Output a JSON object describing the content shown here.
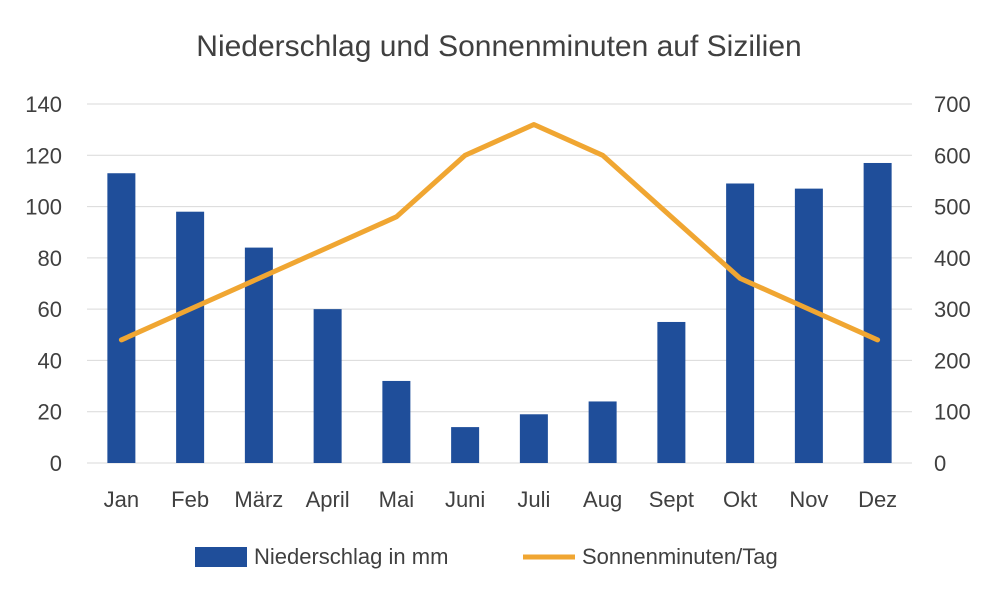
{
  "chart_data": {
    "type": "bar",
    "title": "Niederschlag und Sonnenminuten auf Sizilien",
    "categories": [
      "Jan",
      "Feb",
      "März",
      "April",
      "Mai",
      "Juni",
      "Juli",
      "Aug",
      "Sept",
      "Okt",
      "Nov",
      "Dez"
    ],
    "series": [
      {
        "name": "Niederschlag in mm",
        "type": "bar",
        "axis": "left",
        "color": "#1f4e9a",
        "values": [
          113,
          98,
          84,
          60,
          32,
          14,
          19,
          24,
          55,
          109,
          107,
          117
        ]
      },
      {
        "name": "Sonnenminuten/Tag",
        "type": "line",
        "axis": "right",
        "color": "#f0a632",
        "values": [
          240,
          300,
          360,
          420,
          480,
          600,
          660,
          600,
          480,
          360,
          300,
          240
        ]
      }
    ],
    "y_left": {
      "range": [
        0,
        140
      ],
      "ticks": [
        "0",
        "20",
        "40",
        "60",
        "80",
        "100",
        "120",
        "140"
      ]
    },
    "y_right": {
      "range": [
        0,
        700
      ],
      "ticks": [
        "0",
        "100",
        "200",
        "300",
        "400",
        "500",
        "600",
        "700"
      ]
    },
    "grid": true,
    "legend_position": "bottom"
  }
}
